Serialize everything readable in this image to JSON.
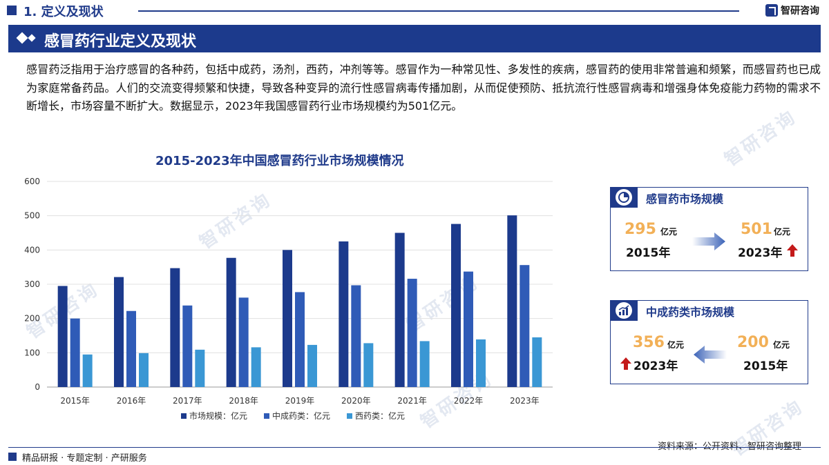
{
  "header": {
    "section": "1. 定义及现状",
    "brand": "智研咨询"
  },
  "banner": {
    "title": "感冒药行业定义及现状"
  },
  "paragraph": "感冒药泛指用于治疗感冒的各种药，包括中成药，汤剂，西药，冲剂等等。感冒作为一种常见性、多发性的疾病，感冒药的使用非常普遍和频繁，而感冒药也已成为家庭常备药品。人们的交流变得频繁和快捷，导致各种变异的流行性感冒病毒传播加剧，从而促使预防、抵抗流行性感冒病毒和增强身体免疫能力药物的需求不断增长，市场容量不断扩大。数据显示，2023年我国感冒药行业市场规模约为501亿元。",
  "chart_data": {
    "type": "bar",
    "title": "2015-2023年中国感冒药行业市场规模情况",
    "categories": [
      "2015年",
      "2016年",
      "2017年",
      "2018年",
      "2019年",
      "2020年",
      "2021年",
      "2022年",
      "2023年"
    ],
    "series": [
      {
        "name": "市场规模：亿元",
        "color": "#1c3a8c",
        "values": [
          295,
          321,
          347,
          377,
          400,
          425,
          450,
          476,
          501
        ]
      },
      {
        "name": "中成药类：亿元",
        "color": "#2f5bb7",
        "values": [
          200,
          222,
          238,
          261,
          277,
          297,
          316,
          337,
          356
        ]
      },
      {
        "name": "西药类：亿元",
        "color": "#3a97d4",
        "values": [
          95,
          99,
          109,
          116,
          123,
          128,
          134,
          139,
          145
        ]
      }
    ],
    "ylim": [
      0,
      600
    ],
    "yticks": [
      0,
      100,
      200,
      300,
      400,
      500,
      600
    ],
    "grid": true,
    "legend": "bottom"
  },
  "card1": {
    "title": "感冒药市场规模",
    "from_value": "295",
    "from_unit": "亿元",
    "from_year": "2015年",
    "to_value": "501",
    "to_unit": "亿元",
    "to_year": "2023年"
  },
  "card2": {
    "title": "中成药类市场规模",
    "left_value": "356",
    "left_unit": "亿元",
    "left_year": "2023年",
    "right_value": "200",
    "right_unit": "亿元",
    "right_year": "2015年"
  },
  "footer": {
    "left": "精品研报 · 专题定制 · 产研服务",
    "source": "资料来源：公开资料、智研咨询整理"
  },
  "watermark": "智研咨询"
}
